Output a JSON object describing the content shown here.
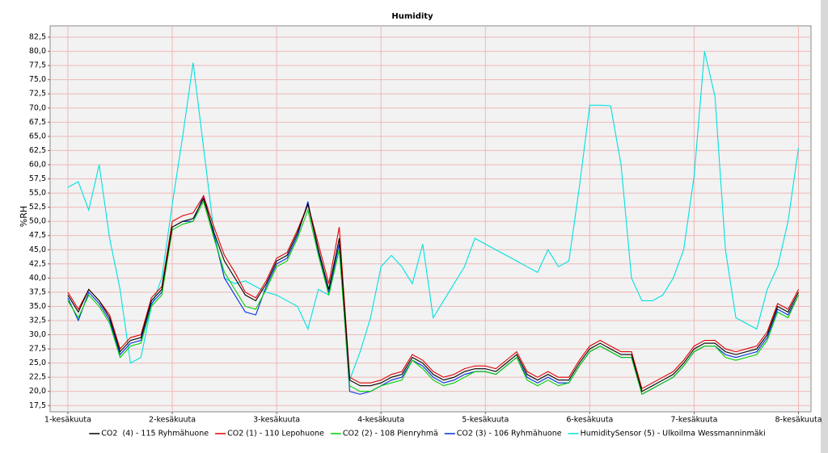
{
  "chart_data": {
    "type": "line",
    "title": "Humidity",
    "y_label": "%RH",
    "x": [
      0,
      0.1,
      0.2,
      0.3,
      0.4,
      0.5,
      0.6,
      0.7,
      0.8,
      0.9,
      1,
      1.1,
      1.2,
      1.3,
      1.4,
      1.5,
      1.6,
      1.7,
      1.8,
      1.9,
      2,
      2.1,
      2.2,
      2.3,
      2.4,
      2.5,
      2.6,
      2.7,
      2.8,
      2.9,
      3,
      3.1,
      3.2,
      3.3,
      3.4,
      3.5,
      3.6,
      3.7,
      3.8,
      3.9,
      4,
      4.1,
      4.2,
      4.3,
      4.4,
      4.5,
      4.6,
      4.7,
      4.8,
      4.9,
      5,
      5.1,
      5.2,
      5.3,
      5.4,
      5.5,
      5.6,
      5.7,
      5.8,
      5.9,
      6,
      6.1,
      6.2,
      6.3,
      6.4,
      6.5,
      6.6,
      6.7,
      6.8,
      6.9,
      7
    ],
    "xlim": [
      -0.17,
      7.12
    ],
    "xticks": [
      {
        "value": 0,
        "label": "1-kesäkuuta"
      },
      {
        "value": 1,
        "label": "2-kesäkuuta"
      },
      {
        "value": 2,
        "label": "3-kesäkuuta"
      },
      {
        "value": 3,
        "label": "4-kesäkuuta"
      },
      {
        "value": 4,
        "label": "5-kesäkuuta"
      },
      {
        "value": 5,
        "label": "6-kesäkuuta"
      },
      {
        "value": 6,
        "label": "7-kesäkuuta"
      },
      {
        "value": 7,
        "label": "8-kesäkuuta"
      }
    ],
    "ylim": [
      16.4,
      84.5
    ],
    "yticks": [
      {
        "value": 17.5,
        "label": "17,5"
      },
      {
        "value": 20,
        "label": "20,0"
      },
      {
        "value": 22.5,
        "label": "22,5"
      },
      {
        "value": 25,
        "label": "25,0"
      },
      {
        "value": 27.5,
        "label": "27,5"
      },
      {
        "value": 30,
        "label": "30,0"
      },
      {
        "value": 32.5,
        "label": "32,5"
      },
      {
        "value": 35,
        "label": "35,0"
      },
      {
        "value": 37.5,
        "label": "37,5"
      },
      {
        "value": 40,
        "label": "40,0"
      },
      {
        "value": 42.5,
        "label": "42,5"
      },
      {
        "value": 45,
        "label": "45,0"
      },
      {
        "value": 47.5,
        "label": "47,5"
      },
      {
        "value": 50,
        "label": "50,0"
      },
      {
        "value": 52.5,
        "label": "52,5"
      },
      {
        "value": 55,
        "label": "55,0"
      },
      {
        "value": 57.5,
        "label": "57,5"
      },
      {
        "value": 60,
        "label": "60,0"
      },
      {
        "value": 62.5,
        "label": "62,5"
      },
      {
        "value": 65,
        "label": "65,0"
      },
      {
        "value": 67.5,
        "label": "67,5"
      },
      {
        "value": 70,
        "label": "70,0"
      },
      {
        "value": 72.5,
        "label": "72,5"
      },
      {
        "value": 75,
        "label": "75,0"
      },
      {
        "value": 77.5,
        "label": "77,5"
      },
      {
        "value": 80,
        "label": "80,0"
      },
      {
        "value": 82.5,
        "label": "82,5"
      }
    ],
    "grid": true,
    "series": [
      {
        "name": "CO2  (4) - 115 Ryhmähuone",
        "color": "#000000",
        "values": [
          37,
          34,
          38,
          36,
          33,
          27,
          29,
          29.5,
          36,
          38,
          49,
          50,
          50.5,
          54,
          48,
          43,
          40,
          37,
          36,
          39,
          43,
          44,
          48,
          53,
          45,
          38,
          47,
          22,
          21,
          21,
          21.5,
          22.5,
          23,
          26,
          25,
          23,
          22,
          22.5,
          23.5,
          24,
          24,
          23.5,
          25,
          26.5,
          23,
          22,
          23,
          22,
          22,
          25,
          27.5,
          28.5,
          27.5,
          26.5,
          26.5,
          20,
          21,
          22,
          23,
          25,
          27.5,
          28.5,
          28.5,
          27,
          26.5,
          27,
          27.5,
          30,
          35,
          34,
          37.5
        ]
      },
      {
        "name": "CO2 (1) - 110 Lepohuone",
        "color": "#e00000",
        "values": [
          37.5,
          34.5,
          38,
          36,
          33.5,
          27.5,
          29.5,
          30,
          36.5,
          38.5,
          50,
          51,
          51.5,
          54.5,
          49,
          44,
          41,
          37.5,
          36.5,
          39.5,
          43.5,
          44.5,
          48.5,
          53,
          46,
          39,
          49,
          22.5,
          21.5,
          21.5,
          22,
          23,
          23.5,
          26.5,
          25.5,
          23.5,
          22.5,
          23,
          24,
          24.5,
          24.5,
          24,
          25.5,
          27,
          23.5,
          22.5,
          23.5,
          22.5,
          22.5,
          25.5,
          28,
          29,
          28,
          27,
          27,
          20.5,
          21.5,
          22.5,
          23.5,
          25.5,
          28,
          29,
          29,
          27.5,
          27,
          27.5,
          28,
          30.5,
          35.5,
          34.5,
          38
        ]
      },
      {
        "name": "CO2 (2) - 108 Pienryhmä",
        "color": "#00d000",
        "values": [
          36,
          33,
          37,
          35,
          32,
          26,
          28,
          28.5,
          35,
          37,
          48.5,
          49.5,
          50,
          53.5,
          47,
          41,
          38,
          35,
          34.5,
          38,
          42,
          43,
          47,
          52,
          44,
          37,
          45,
          21,
          20,
          20,
          21,
          21.5,
          22,
          25.5,
          24,
          22,
          21,
          21.5,
          22.5,
          23.5,
          23.5,
          23,
          24.5,
          26,
          22,
          21,
          22,
          21,
          21.5,
          24.5,
          27,
          28,
          27,
          26,
          26,
          19.5,
          20.5,
          21.5,
          22.5,
          24.5,
          27,
          28,
          28,
          26,
          25.5,
          26,
          26.5,
          29,
          34,
          33,
          37
        ]
      },
      {
        "name": "CO2 (3) - 106 Ryhmähuone",
        "color": "#0030e0",
        "values": [
          36.5,
          32.5,
          37.5,
          35.5,
          32.5,
          26.5,
          28.5,
          29,
          35.5,
          37.5,
          49,
          50,
          50,
          54.5,
          47.5,
          40,
          37,
          34,
          33.5,
          38.5,
          42.5,
          43.5,
          47.5,
          53.5,
          44.5,
          37.5,
          46,
          20,
          19.5,
          20,
          21,
          22,
          22.5,
          25.5,
          24.5,
          22.5,
          21.5,
          22,
          23,
          23.5,
          23.5,
          23,
          24.5,
          26,
          22.5,
          21.5,
          22.5,
          21.5,
          21.5,
          24.5,
          27,
          28,
          27,
          26,
          26,
          19.5,
          20.5,
          21.5,
          22.5,
          24.5,
          27,
          28,
          28,
          26.5,
          26,
          26.5,
          27,
          29.5,
          34.5,
          33.5,
          37
        ]
      },
      {
        "name": "HumiditySensor (5) - Ulkoilma Wessmanninmäki",
        "color": "#00e0e0",
        "values": [
          56,
          57,
          52,
          60,
          47,
          38,
          25,
          26,
          35,
          40,
          53,
          65,
          78,
          63,
          48,
          40,
          39,
          39.5,
          38.5,
          37.5,
          37,
          36,
          35,
          31,
          38,
          37,
          45,
          22,
          27,
          33,
          42,
          44,
          42,
          39,
          46,
          33,
          36,
          39,
          42,
          47,
          46,
          45,
          44,
          43,
          42,
          41,
          45,
          42,
          43,
          56,
          70.5,
          70.5,
          70.4,
          60,
          40,
          36,
          36,
          37,
          40,
          45,
          58,
          80,
          72,
          45,
          33,
          32,
          31,
          38,
          42,
          50,
          63
        ]
      }
    ]
  }
}
